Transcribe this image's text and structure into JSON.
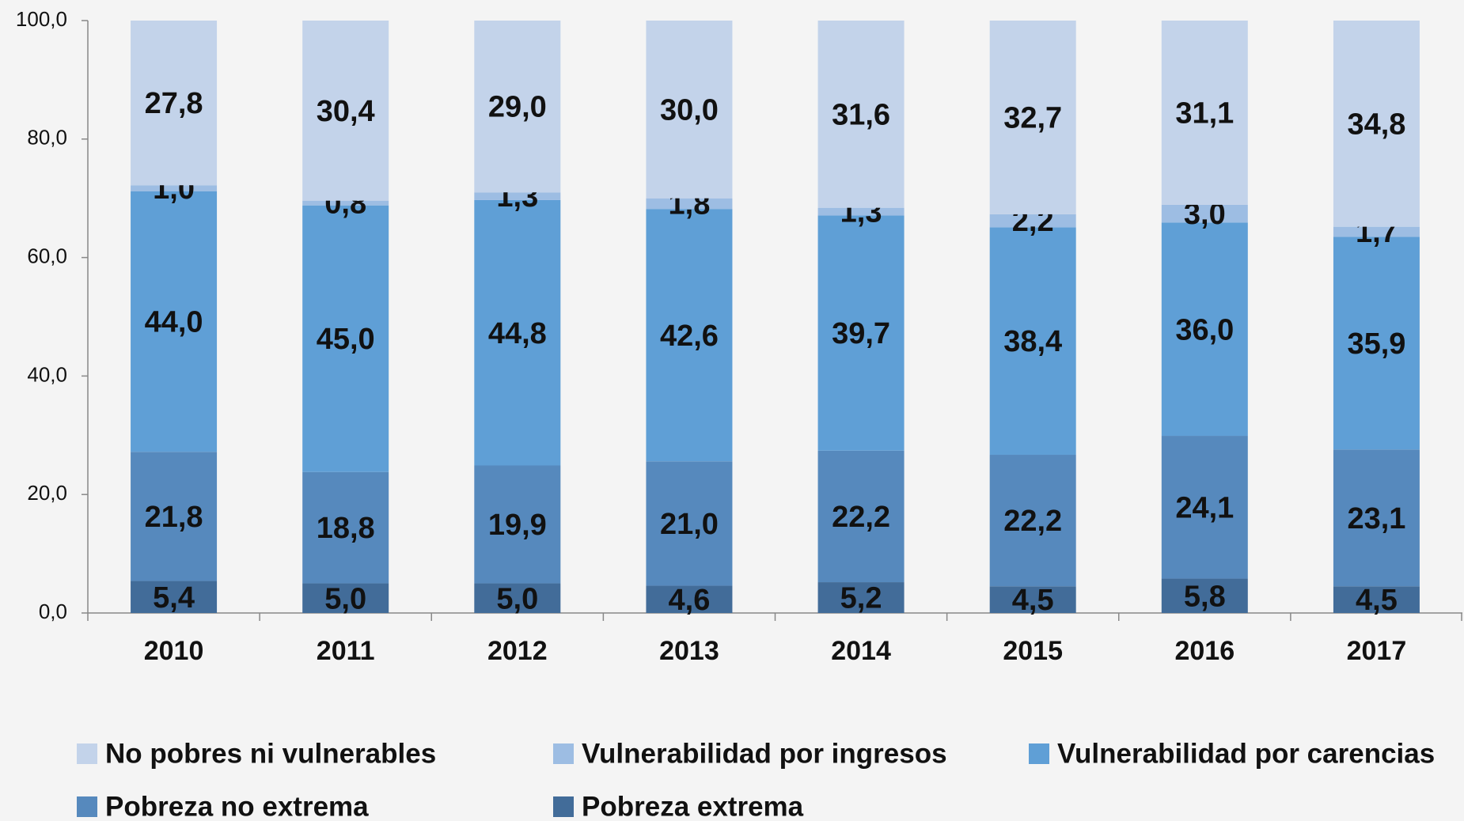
{
  "chart_data": {
    "type": "stacked_bar",
    "categories": [
      "2010",
      "2011",
      "2012",
      "2013",
      "2014",
      "2015",
      "2016",
      "2017"
    ],
    "series": [
      {
        "name": "No pobres ni vulnerables",
        "color": "#c3d3ea",
        "values": [
          27.8,
          30.4,
          29.0,
          30.0,
          31.6,
          32.7,
          31.1,
          34.8
        ],
        "value_labels": [
          "27,8",
          "30,4",
          "29,0",
          "30,0",
          "31,6",
          "32,7",
          "31,1",
          "34,8"
        ]
      },
      {
        "name": "Vulnerabilidad por ingresos",
        "color": "#9dbde3",
        "values": [
          1.0,
          0.8,
          1.3,
          1.8,
          1.3,
          2.2,
          3.0,
          1.7
        ],
        "value_labels": [
          "1,0",
          "0,8",
          "1,3",
          "1,8",
          "1,3",
          "2,2",
          "3,0",
          "1,7"
        ]
      },
      {
        "name": "Vulnerabilidad por carencias",
        "color": "#5f9fd6",
        "values": [
          44.0,
          45.0,
          44.8,
          42.6,
          39.7,
          38.4,
          36.0,
          35.9
        ],
        "value_labels": [
          "44,0",
          "45,0",
          "44,8",
          "42,6",
          "39,7",
          "38,4",
          "36,0",
          "35,9"
        ]
      },
      {
        "name": "Pobreza no extrema",
        "color": "#5689bd",
        "values": [
          21.8,
          18.8,
          19.9,
          21.0,
          22.2,
          22.2,
          24.1,
          23.1
        ],
        "value_labels": [
          "21,8",
          "18,8",
          "19,9",
          "21,0",
          "22,2",
          "22,2",
          "24,1",
          "23,1"
        ]
      },
      {
        "name": "Pobreza extrema",
        "color": "#426c99",
        "values": [
          5.4,
          5.0,
          5.0,
          4.6,
          5.2,
          4.5,
          5.8,
          4.5
        ],
        "value_labels": [
          "5,4",
          "5,0",
          "5,0",
          "4,6",
          "5,2",
          "4,5",
          "5,8",
          "4,5"
        ]
      }
    ],
    "ylim": [
      0,
      100
    ],
    "yticks": [
      {
        "value": 0,
        "label": "0,0"
      },
      {
        "value": 20,
        "label": "20,0"
      },
      {
        "value": 40,
        "label": "40,0"
      },
      {
        "value": 60,
        "label": "60,0"
      },
      {
        "value": 80,
        "label": "80,0"
      },
      {
        "value": 100,
        "label": "100,0"
      }
    ],
    "legend": "bottom"
  }
}
